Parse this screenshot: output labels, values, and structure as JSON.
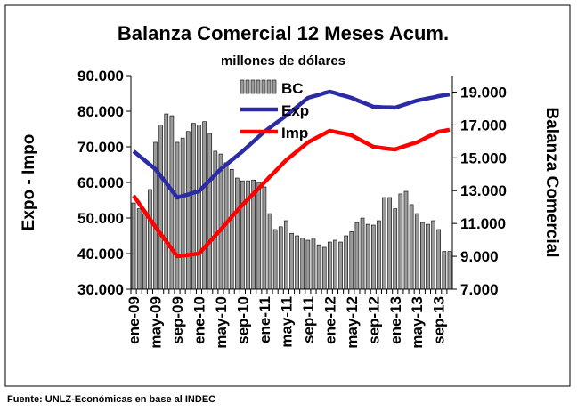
{
  "chart_data": {
    "type": "combo",
    "title": "Balanza Comercial 12 Meses Acum.",
    "subtitle": "millones de dólares",
    "y_label": "Expo - Impo",
    "y2_label": "Balanza Comercial",
    "source": "Fuente: UNLZ-Económicas en base al INDEC",
    "legend": "top-center",
    "categories": [
      "ene-09",
      null,
      null,
      null,
      "may-09",
      null,
      null,
      null,
      "sep-09",
      null,
      null,
      null,
      "ene-10",
      null,
      null,
      null,
      "may-10",
      null,
      null,
      null,
      "sep-10",
      null,
      null,
      null,
      "ene-11",
      null,
      null,
      null,
      "may-11",
      null,
      null,
      null,
      "sep-11",
      null,
      null,
      null,
      "ene-12",
      null,
      null,
      null,
      "may-12",
      null,
      null,
      null,
      "sep-12",
      null,
      null,
      null,
      "ene-13",
      null,
      null,
      null,
      "may-13",
      null,
      null,
      null,
      "sep-13",
      null,
      null
    ],
    "ylim": [
      30000,
      90000
    ],
    "yticks": [
      {
        "value": 30000,
        "label": "30.000"
      },
      {
        "value": 40000,
        "label": "40.000"
      },
      {
        "value": 50000,
        "label": "50.000"
      },
      {
        "value": 60000,
        "label": "60.000"
      },
      {
        "value": 70000,
        "label": "70.000"
      },
      {
        "value": 80000,
        "label": "80.000"
      },
      {
        "value": 90000,
        "label": "90.000"
      }
    ],
    "y2lim": [
      7000,
      20000
    ],
    "y2ticks": [
      {
        "value": 7000,
        "label": "7.000"
      },
      {
        "value": 9000,
        "label": "9.000"
      },
      {
        "value": 11000,
        "label": "11.000"
      },
      {
        "value": 13000,
        "label": "13.000"
      },
      {
        "value": 15000,
        "label": "15.000"
      },
      {
        "value": 17000,
        "label": "17.000"
      },
      {
        "value": 19000,
        "label": "19.000"
      }
    ],
    "series": [
      {
        "name": "BC",
        "type": "bar",
        "axis": "y2",
        "color": "#9a9a9a",
        "values": [
          12250,
          11900,
          11600,
          13070,
          15940,
          17000,
          17670,
          17560,
          15940,
          16200,
          16600,
          17100,
          17000,
          17200,
          16480,
          15400,
          15230,
          14700,
          14300,
          13770,
          13600,
          13600,
          13650,
          13500,
          13230,
          11600,
          10630,
          10800,
          11170,
          10400,
          10250,
          10100,
          9980,
          10100,
          9700,
          9550,
          9870,
          9980,
          9870,
          10250,
          10500,
          11060,
          11330,
          10950,
          10900,
          11170,
          12580,
          12580,
          11900,
          12800,
          12960,
          12150,
          11600,
          11060,
          10950,
          11170,
          10630,
          9300,
          9300
        ]
      },
      {
        "name": "Exp",
        "type": "line",
        "color": "#2b2ba6",
        "values": [
          68750,
          67500,
          66250,
          65000,
          63750,
          61750,
          59750,
          57750,
          55750,
          56200,
          56600,
          57100,
          57500,
          59100,
          60600,
          62200,
          63750,
          65000,
          66250,
          67500,
          68750,
          70100,
          71500,
          72900,
          74250,
          75400,
          76500,
          77600,
          78750,
          80000,
          81250,
          82500,
          83750,
          84200,
          84600,
          85100,
          85500,
          85100,
          84600,
          84200,
          83750,
          83100,
          82500,
          81900,
          81250,
          81200,
          81100,
          81100,
          81000,
          81500,
          82000,
          82500,
          83000,
          83300,
          83600,
          83900,
          84250,
          84500,
          84700
        ]
      },
      {
        "name": "Imp",
        "type": "line",
        "color": "#ff0000",
        "values": [
          56250,
          54100,
          51900,
          49700,
          47500,
          45400,
          43400,
          41300,
          39250,
          39400,
          39600,
          39800,
          40000,
          41700,
          43400,
          45100,
          46750,
          48500,
          50300,
          52000,
          53750,
          55300,
          56900,
          58400,
          60000,
          61600,
          63100,
          64700,
          66250,
          67500,
          68750,
          70000,
          71250,
          72100,
          72900,
          73700,
          74500,
          74200,
          73900,
          73600,
          73250,
          72400,
          71600,
          70800,
          70000,
          69800,
          69600,
          69400,
          69250,
          69800,
          70300,
          70800,
          71250,
          72000,
          72800,
          73500,
          74250,
          74500,
          74800
        ]
      }
    ]
  }
}
